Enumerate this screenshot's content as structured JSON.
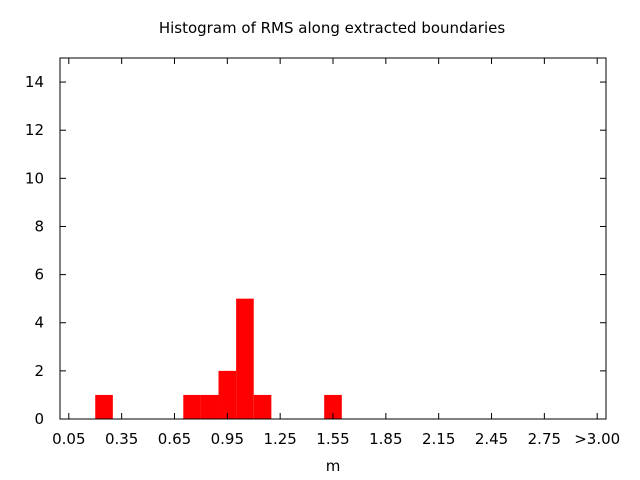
{
  "chart_data": {
    "type": "bar",
    "title": "Histogram of RMS along extracted boundaries",
    "xlabel": "m",
    "ylabel": "",
    "x_ticks": [
      "0.05",
      "0.35",
      "0.65",
      "0.95",
      "1.25",
      "1.55",
      "1.85",
      "2.15",
      "2.45",
      "2.75",
      ">3.00"
    ],
    "x_tick_values": [
      0.05,
      0.35,
      0.65,
      0.95,
      1.25,
      1.55,
      1.85,
      2.15,
      2.45,
      2.75,
      3.05
    ],
    "xlim": [
      0.0,
      3.1
    ],
    "ylim": [
      0,
      15
    ],
    "y_ticks": [
      0,
      2,
      4,
      6,
      8,
      10,
      12,
      14
    ],
    "bin_width": 0.1,
    "bins": [
      {
        "center": 0.25,
        "count": 1
      },
      {
        "center": 0.75,
        "count": 1
      },
      {
        "center": 0.85,
        "count": 1
      },
      {
        "center": 0.95,
        "count": 2
      },
      {
        "center": 1.05,
        "count": 5
      },
      {
        "center": 1.15,
        "count": 1
      },
      {
        "center": 1.55,
        "count": 1
      }
    ],
    "bar_color": "#ff0000",
    "grid": false,
    "legend": "none"
  }
}
